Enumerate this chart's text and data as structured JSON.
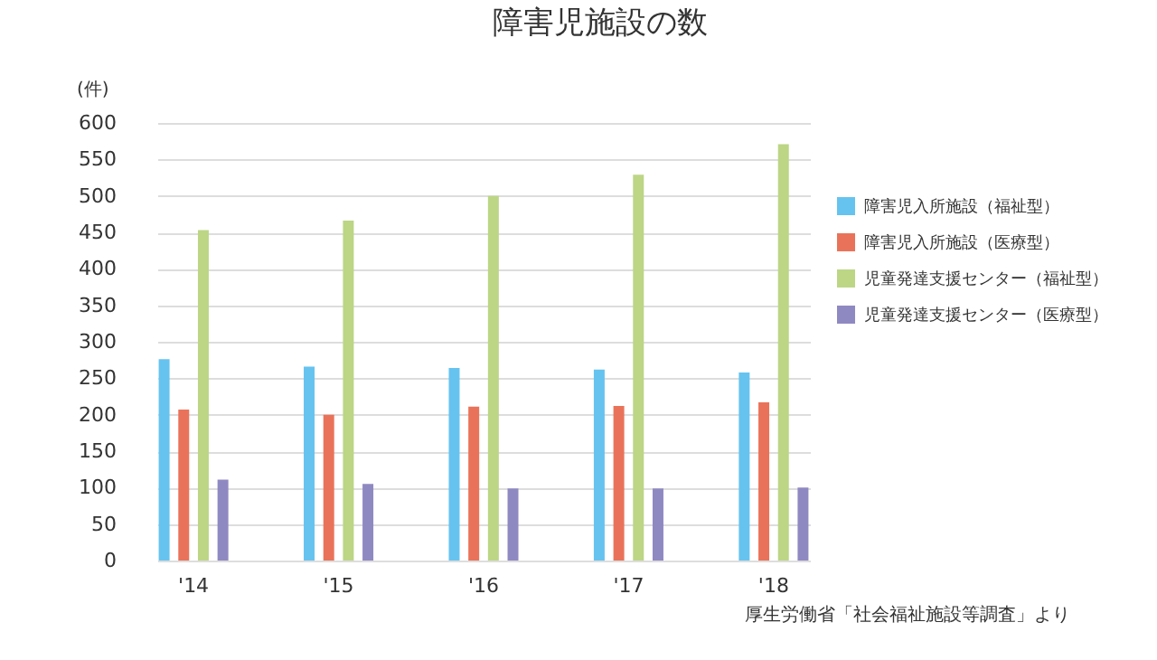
{
  "chart_data": {
    "type": "bar",
    "title": "障害児施設の数",
    "ylabel": "(件)",
    "categories": [
      "'14",
      "'15",
      "'16",
      "'17",
      "'18"
    ],
    "series": [
      {
        "name": "障害児入所施設（福祉型）",
        "color": "#66c3f0",
        "values": [
          276,
          266,
          264,
          262,
          258
        ]
      },
      {
        "name": "障害児入所施設（医療型）",
        "color": "#e9735a",
        "values": [
          207,
          200,
          211,
          212,
          217
        ]
      },
      {
        "name": "児童発達支援センター（福祉型）",
        "color": "#bcd685",
        "values": [
          453,
          466,
          500,
          529,
          571
        ]
      },
      {
        "name": "児童発達支援センター（医療型）",
        "color": "#8f89c2",
        "values": [
          111,
          105,
          99,
          99,
          100
        ]
      }
    ],
    "ylim": [
      0,
      600
    ],
    "yticks": [
      0,
      50,
      100,
      150,
      200,
      250,
      300,
      350,
      400,
      450,
      500,
      550,
      600
    ],
    "grid": "y",
    "legend": "right",
    "annotations": [
      "厚生労働省「社会福祉施設等調査」より"
    ]
  }
}
